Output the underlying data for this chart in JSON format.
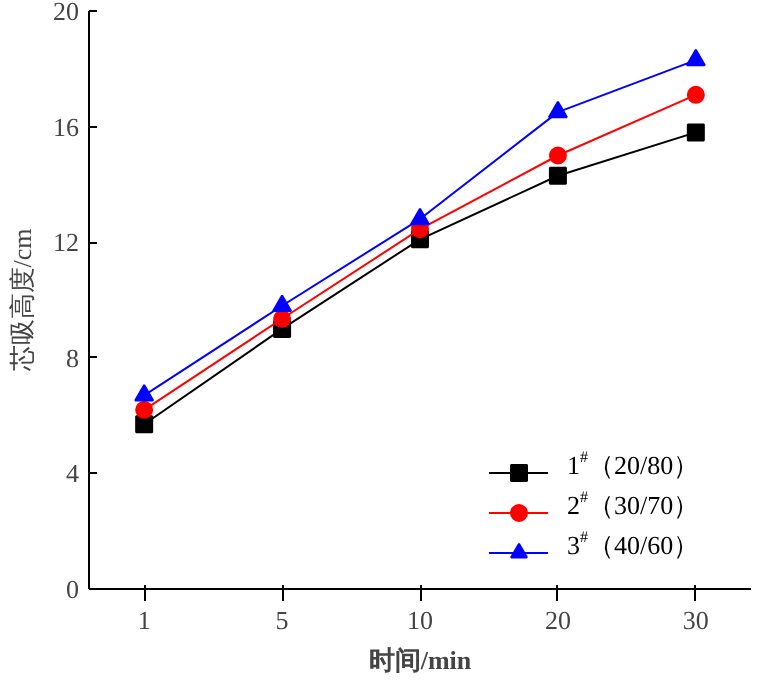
{
  "chart_data": {
    "type": "line",
    "xlabel": "时间/min",
    "ylabel": "芯吸高度/cm",
    "categories": [
      "1",
      "5",
      "10",
      "20",
      "30"
    ],
    "series": [
      {
        "name": "1$^{#}$（20/80）",
        "color": "#000000",
        "marker": "square",
        "values": [
          5.7,
          9.0,
          12.1,
          14.3,
          15.8
        ]
      },
      {
        "name": "2$^{#}$（30/70）",
        "color": "#ff0000",
        "marker": "circle",
        "values": [
          6.2,
          9.35,
          12.45,
          15.0,
          17.1
        ]
      },
      {
        "name": "3$^{#}$（40/60）",
        "color": "#0000ff",
        "marker": "triangle",
        "values": [
          6.7,
          9.8,
          12.8,
          16.5,
          18.3
        ]
      }
    ],
    "ylim": [
      0,
      20
    ],
    "yticks": [
      0,
      4,
      8,
      12,
      16,
      20
    ],
    "grid": false,
    "legend": "bottom right"
  }
}
